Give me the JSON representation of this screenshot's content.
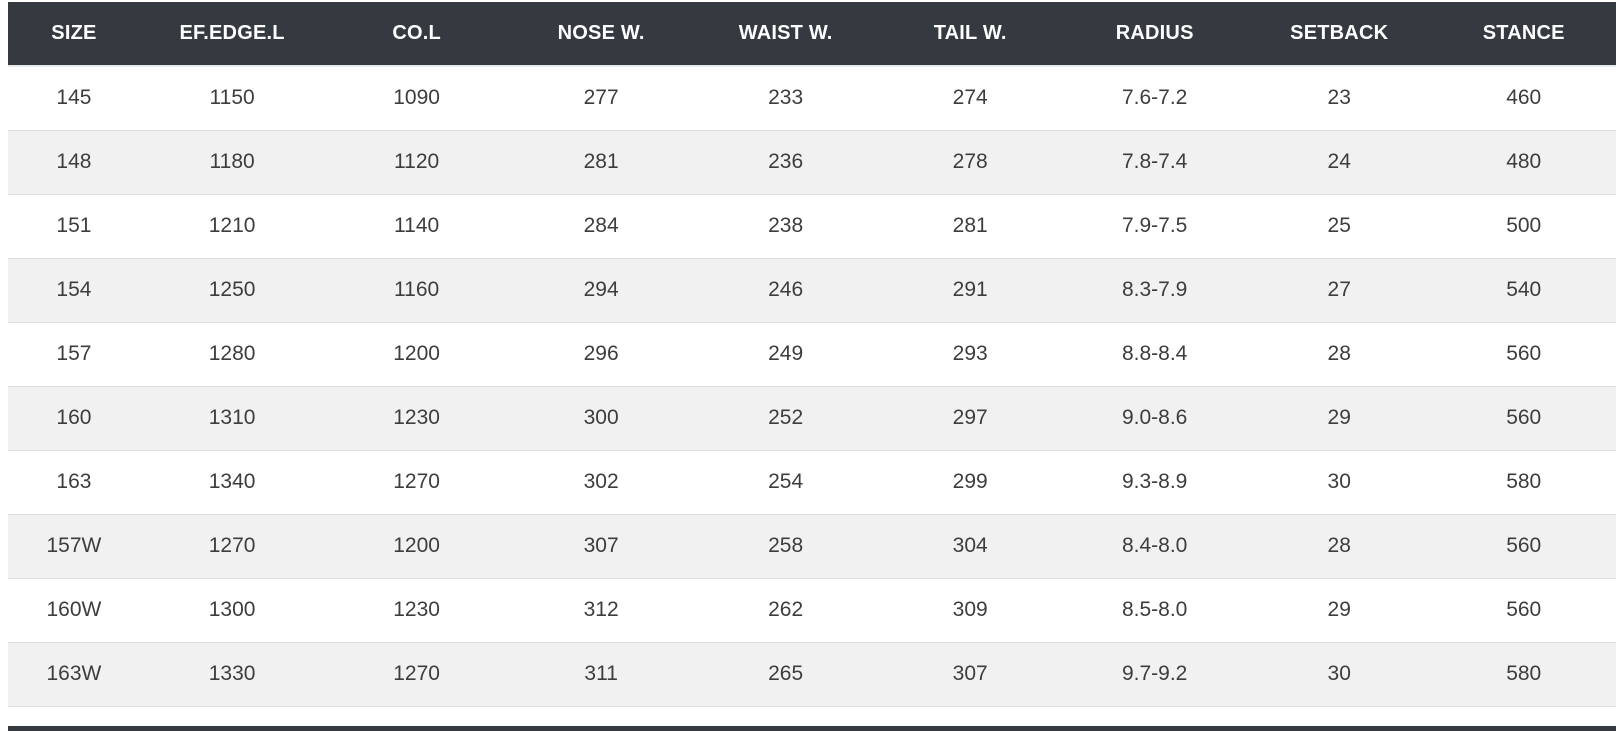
{
  "chart_data": {
    "type": "table",
    "title": "",
    "columns": [
      "SIZE",
      "EF.EDGE.L",
      "CO.L",
      "NOSE W.",
      "WAIST W.",
      "TAIL W.",
      "RADIUS",
      "SETBACK",
      "STANCE"
    ],
    "rows": [
      [
        "145",
        "1150",
        "1090",
        "277",
        "233",
        "274",
        "7.6-7.2",
        "23",
        "460"
      ],
      [
        "148",
        "1180",
        "1120",
        "281",
        "236",
        "278",
        "7.8-7.4",
        "24",
        "480"
      ],
      [
        "151",
        "1210",
        "1140",
        "284",
        "238",
        "281",
        "7.9-7.5",
        "25",
        "500"
      ],
      [
        "154",
        "1250",
        "1160",
        "294",
        "246",
        "291",
        "8.3-7.9",
        "27",
        "540"
      ],
      [
        "157",
        "1280",
        "1200",
        "296",
        "249",
        "293",
        "8.8-8.4",
        "28",
        "560"
      ],
      [
        "160",
        "1310",
        "1230",
        "300",
        "252",
        "297",
        "9.0-8.6",
        "29",
        "560"
      ],
      [
        "163",
        "1340",
        "1270",
        "302",
        "254",
        "299",
        "9.3-8.9",
        "30",
        "580"
      ],
      [
        "157W",
        "1270",
        "1200",
        "307",
        "258",
        "304",
        "8.4-8.0",
        "28",
        "560"
      ],
      [
        "160W",
        "1300",
        "1230",
        "312",
        "262",
        "309",
        "8.5-8.0",
        "29",
        "560"
      ],
      [
        "163W",
        "1330",
        "1270",
        "311",
        "265",
        "307",
        "9.7-9.2",
        "30",
        "580"
      ]
    ],
    "layout": {
      "zebra_striping": true,
      "header_position": "top",
      "text_align": "center"
    }
  },
  "colors": {
    "header_bg": "#343a40",
    "header_text": "#ffffff",
    "row_bg": "#ffffff",
    "row_alt_bg": "#f1f1f2",
    "body_text": "#3d3d3d",
    "row_border": "#dedede",
    "bottom_bar": "#343a40"
  }
}
